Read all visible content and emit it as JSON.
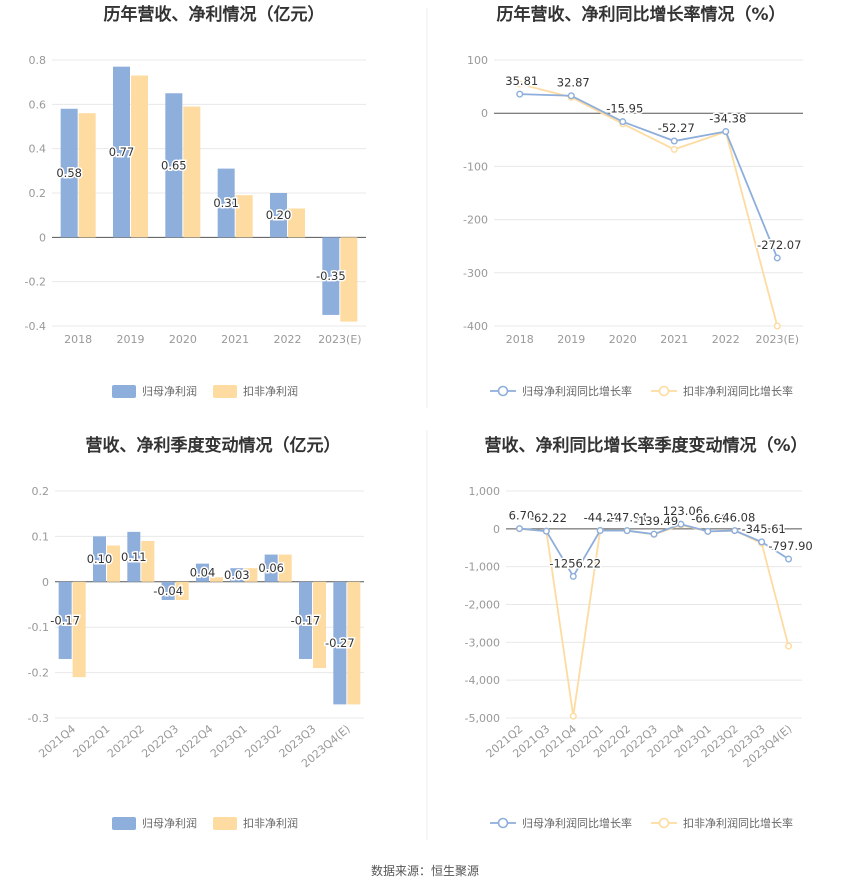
{
  "source_label": "数据来源：恒生聚源",
  "colors": {
    "primary": "#8eaedb",
    "secondary": "#fedba0",
    "grid": "#e8e8e8",
    "axis": "#555555",
    "divider": "#eeeeee"
  },
  "chart_data": [
    {
      "id": "annual-profit",
      "type": "bar",
      "title": "历年营收、净利情况（亿元）",
      "categories": [
        "2018",
        "2019",
        "2020",
        "2021",
        "2022",
        "2023(E)"
      ],
      "yticks": [
        "0.8",
        "0.6",
        "0.4",
        "0.2",
        "0",
        "-0.2",
        "-0.4"
      ],
      "ylim": [
        -0.4,
        0.8
      ],
      "series": [
        {
          "name": "归母净利润",
          "values": [
            0.58,
            0.77,
            0.65,
            0.31,
            0.2,
            -0.35
          ],
          "labels": [
            "0.58",
            "0.77",
            "0.65",
            "0.31",
            "0.20",
            "-0.35"
          ]
        },
        {
          "name": "扣非净利润",
          "values": [
            0.56,
            0.73,
            0.59,
            0.19,
            0.13,
            -0.38
          ]
        }
      ]
    },
    {
      "id": "annual-growth",
      "type": "line",
      "title": "历年营收、净利同比增长率情况（%）",
      "categories": [
        "2018",
        "2019",
        "2020",
        "2021",
        "2022",
        "2023(E)"
      ],
      "yticks": [
        "100",
        "0",
        "-100",
        "-200",
        "-300",
        "-400"
      ],
      "ylim": [
        -400,
        100
      ],
      "series": [
        {
          "name": "归母净利润同比增长率",
          "values": [
            35.81,
            32.87,
            -15.95,
            -52.27,
            -34.38,
            -272.07
          ],
          "labels": [
            "35.81",
            "32.87",
            "-15.95",
            "-52.27",
            "-34.38",
            "-272.07"
          ]
        },
        {
          "name": "扣非净利润同比增长率",
          "values": [
            55,
            30,
            -20,
            -68,
            -35,
            -400
          ]
        }
      ]
    },
    {
      "id": "quarterly-profit",
      "type": "bar",
      "title": "营收、净利季度变动情况（亿元）",
      "categories": [
        "2021Q4",
        "2022Q1",
        "2022Q2",
        "2022Q3",
        "2022Q4",
        "2023Q1",
        "2023Q2",
        "2023Q3",
        "2023Q4(E)"
      ],
      "yticks": [
        "0.2",
        "0.1",
        "0",
        "-0.1",
        "-0.2",
        "-0.3"
      ],
      "ylim": [
        -0.3,
        0.2
      ],
      "series": [
        {
          "name": "归母净利润",
          "values": [
            -0.17,
            0.1,
            0.11,
            -0.04,
            0.04,
            0.03,
            0.06,
            -0.17,
            -0.27
          ],
          "labels": [
            "-0.17",
            "0.10",
            "0.11",
            "-0.04",
            "0.04",
            "0.03",
            "0.06",
            "-0.17",
            "-0.27"
          ]
        },
        {
          "name": "扣非净利润",
          "values": [
            -0.21,
            0.08,
            0.09,
            -0.04,
            0.01,
            0.03,
            0.06,
            -0.19,
            -0.27
          ]
        }
      ]
    },
    {
      "id": "quarterly-growth",
      "type": "line",
      "title": "营收、净利同比增长率季度变动情况（%）",
      "categories": [
        "2021Q2",
        "2021Q3",
        "2021Q4",
        "2022Q1",
        "2022Q2",
        "2022Q3",
        "2022Q4",
        "2023Q1",
        "2023Q2",
        "2023Q3",
        "2023Q4(E)"
      ],
      "yticks": [
        "1,000",
        "0",
        "-1,000",
        "-2,000",
        "-3,000",
        "-4,000",
        "-5,000"
      ],
      "ylim": [
        -5000,
        1000
      ],
      "series": [
        {
          "name": "归母净利润同比增长率",
          "values": [
            6.7,
            -62.22,
            -1256.22,
            -44.28,
            -47.94,
            -139.49,
            123.06,
            -66.6,
            -46.08,
            -345.61,
            -797.9
          ],
          "labels": [
            "6.70",
            "-62.22",
            "-1256.22",
            "-44.28",
            "-47.94",
            "-139.49",
            "123.06",
            "-66.60",
            "-46.08",
            "-345.61",
            "-797.90"
          ]
        },
        {
          "name": "扣非净利润同比增长率",
          "values": [
            0,
            -60,
            -4950,
            -40,
            -50,
            -150,
            100,
            -70,
            -50,
            -380,
            -3100
          ]
        }
      ]
    }
  ]
}
